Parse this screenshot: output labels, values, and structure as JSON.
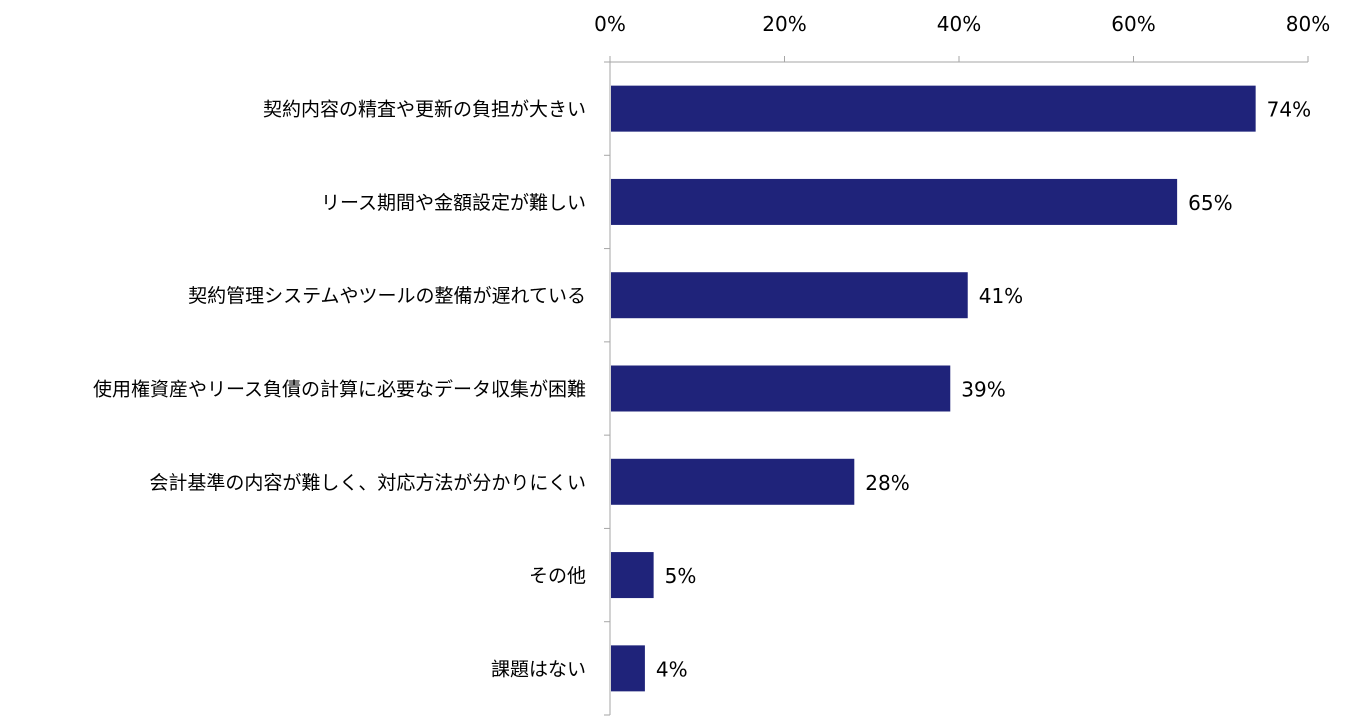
{
  "chart_data": {
    "type": "bar",
    "orientation": "horizontal",
    "categories": [
      "契約内容の精査や更新の負担が大きい",
      "リース期間や金額設定が難しい",
      "契約管理システムやツールの整備が遅れている",
      "使用権資産やリース負債の計算に必要なデータ収集が困難",
      "会計基準の内容が難しく、対応方法が分かりにくい",
      "その他",
      "課題はない"
    ],
    "values": [
      74,
      65,
      41,
      39,
      28,
      5,
      4
    ],
    "data_labels": [
      "74%",
      "65%",
      "41%",
      "39%",
      "28%",
      "5%",
      "4%"
    ],
    "x_ticks": [
      0,
      20,
      40,
      60,
      80
    ],
    "x_tick_labels": [
      "0%",
      "20%",
      "40%",
      "60%",
      "80%"
    ],
    "xlim": [
      0,
      80
    ],
    "x_axis_position": "top",
    "grid": false,
    "legend": "none",
    "bar_color": "#1f237a",
    "axis_color": "#a6a6a6"
  }
}
